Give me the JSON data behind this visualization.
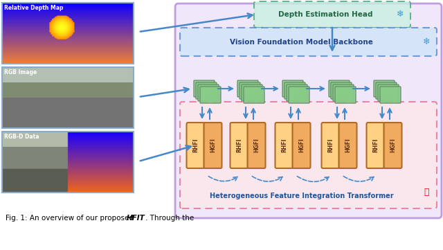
{
  "title_text": "Fig. 1: An overview of our proposed ",
  "title_bold": "HFIT",
  "title_rest": ". Through the",
  "bg_color": "#ffffff",
  "depth_map_label": "Relative Depth Map",
  "rgb_label": "RGB Image",
  "rgbd_label": "RGB-D Data",
  "backbone_label": "Vision Foundation Model Backbone",
  "depth_head_label": "Depth Estimation Head",
  "hfit_label": "Heterogeneous Feature Integration Transformer",
  "rhfi_label": "RHFI",
  "hgfi_label": "HGFI",
  "outer_box_color": "#c8a0e8",
  "backbone_box_color": "#c8d8f8",
  "depth_head_color": "#c8f0e0",
  "hfit_box_color": "#ffd8d8",
  "feature_block_color": "#a8d8a8",
  "rhfi_color": "#ffd080",
  "hgfi_color": "#f0a878",
  "arrow_color": "#4080c0",
  "freeze_icon_color": "#4080c0",
  "fire_icon_color": "#e03020",
  "label_color_depth": "#ffffff",
  "label_color_rgb": "#ffffff",
  "label_color_rgbd": "#ffffff"
}
